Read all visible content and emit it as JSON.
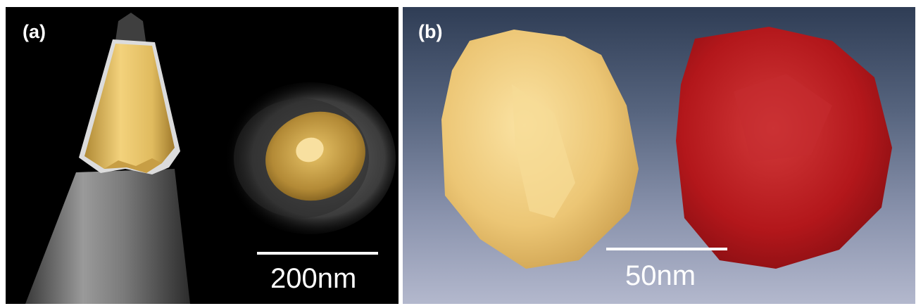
{
  "figure": {
    "panel_a": {
      "label": "(a)",
      "scale_bar": "200nm",
      "colors": {
        "background": "#000000",
        "gold": "#e8c66a",
        "tip_gray": "#8c8c8c"
      }
    },
    "panel_b": {
      "label": "(b)",
      "scale_bar": "50nm",
      "colors": {
        "gold_particle": "#f2cf7f",
        "red_particle": "#b5171b",
        "background_top": "#2f3d55",
        "background_bottom": "#b3b8cd"
      }
    }
  }
}
